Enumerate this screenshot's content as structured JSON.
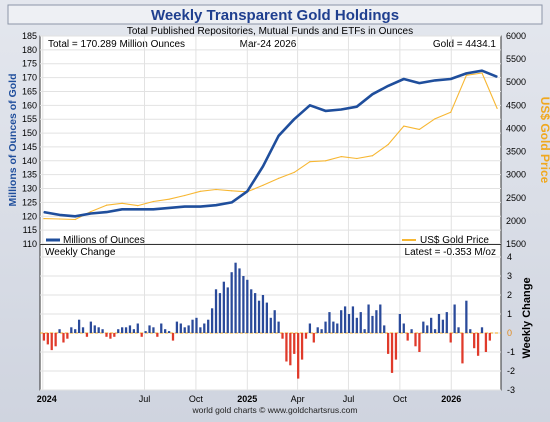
{
  "title": "Weekly Transparent Gold Holdings",
  "subtitle": "Total Published Repositories, Mutual Funds and ETFs in Ounces",
  "info": {
    "total": "Total = 170.289 Million Ounces",
    "date": "Mar-24  2026",
    "gold": "Gold = 4434.1",
    "latest": "Latest = -0.353 M/oz"
  },
  "footer": "world gold charts © www.goldchartsrus.com",
  "colors": {
    "holdings": "#1f4e9c",
    "gold_price": "#f7b733",
    "positive_bar": "#2a4a9a",
    "negative_bar": "#e03a2a",
    "title_text": "#1f3f8f",
    "background_top": "#d9dde6"
  },
  "chart_data": [
    {
      "type": "line",
      "title": "Weekly Transparent Gold Holdings",
      "subtitle": "Total Published Repositories, Mutual Funds and ETFs in Ounces",
      "ylabel": "Millions of Ounces of Gold",
      "y2label": "US$ Gold Price",
      "ylim": [
        110,
        185
      ],
      "y2lim": [
        1500,
        6000
      ],
      "yticks": [
        110,
        115,
        120,
        125,
        130,
        135,
        140,
        145,
        150,
        155,
        160,
        165,
        170,
        175,
        180,
        185
      ],
      "y2ticks": [
        1500,
        2000,
        2500,
        3000,
        3500,
        4000,
        4500,
        5000,
        5500,
        6000
      ],
      "grid": true,
      "legend": [
        "bottom-left",
        "bottom-right"
      ],
      "series": [
        {
          "name": "Millions of Ounces",
          "axis": "left",
          "x": [
            "2024-01-03",
            "2024-01-31",
            "2024-02-28",
            "2024-03-27",
            "2024-04-24",
            "2024-05-22",
            "2024-06-19",
            "2024-07-17",
            "2024-08-14",
            "2024-09-11",
            "2024-10-09",
            "2024-11-06",
            "2024-12-04",
            "2025-01-01",
            "2025-01-29",
            "2025-02-26",
            "2025-03-26",
            "2025-04-23",
            "2025-05-21",
            "2025-06-18",
            "2025-07-16",
            "2025-08-13",
            "2025-09-10",
            "2025-10-08",
            "2025-11-05",
            "2025-12-03",
            "2025-12-31",
            "2026-01-28",
            "2026-02-25",
            "2026-03-24"
          ],
          "values": [
            121.5,
            120.5,
            120.0,
            121.0,
            121.5,
            122.5,
            122.5,
            122.5,
            123.0,
            123.5,
            123.5,
            124.0,
            125.0,
            129.0,
            138.0,
            149.0,
            155.0,
            160.0,
            158.0,
            158.5,
            159.5,
            164.0,
            167.0,
            169.5,
            168.0,
            169.0,
            169.5,
            171.5,
            172.5,
            170.3
          ]
        },
        {
          "name": "US$ Gold Price",
          "axis": "right",
          "x": [
            "2024-01-03",
            "2024-01-31",
            "2024-02-28",
            "2024-03-27",
            "2024-04-24",
            "2024-05-22",
            "2024-06-19",
            "2024-07-17",
            "2024-08-14",
            "2024-09-11",
            "2024-10-09",
            "2024-11-06",
            "2024-12-04",
            "2025-01-01",
            "2025-01-29",
            "2025-02-26",
            "2025-03-26",
            "2025-04-23",
            "2025-05-21",
            "2025-06-18",
            "2025-07-16",
            "2025-08-13",
            "2025-09-10",
            "2025-10-08",
            "2025-11-05",
            "2025-12-03",
            "2025-12-31",
            "2026-01-28",
            "2026-02-25",
            "2026-03-24"
          ],
          "values": [
            2050,
            2040,
            2030,
            2200,
            2340,
            2380,
            2330,
            2420,
            2470,
            2550,
            2640,
            2680,
            2650,
            2630,
            2770,
            2920,
            3050,
            3280,
            3300,
            3390,
            3350,
            3410,
            3650,
            4050,
            3980,
            4210,
            4350,
            5150,
            5200,
            4434.1
          ]
        }
      ]
    },
    {
      "type": "bar",
      "title": "Weekly Change",
      "ylabel": "Weekly Change",
      "ylim": [
        -3,
        4
      ],
      "yticks": [
        -3,
        -2,
        -1,
        0,
        1,
        2,
        3,
        4
      ],
      "xlim": [
        "2023-12-27",
        "2026-03-31"
      ],
      "xtick_labels": [
        "2024",
        "Jul",
        "Oct",
        "2025",
        "Apr",
        "Jul",
        "Oct",
        "2026"
      ],
      "xtick_dates": [
        "2024-01-01",
        "2024-07-01",
        "2024-10-01",
        "2025-01-01",
        "2025-04-01",
        "2025-07-01",
        "2025-10-01",
        "2026-01-01"
      ],
      "values": [
        -0.4,
        -0.6,
        -0.9,
        -0.7,
        0.2,
        -0.5,
        -0.3,
        0.3,
        0.2,
        0.7,
        0.3,
        -0.2,
        0.6,
        0.4,
        0.3,
        0.2,
        -0.2,
        -0.3,
        -0.2,
        0.2,
        0.3,
        0.3,
        0.4,
        0.2,
        0.5,
        -0.2,
        0.1,
        0.4,
        0.3,
        -0.2,
        0.5,
        0.2,
        0.1,
        -0.4,
        0.6,
        0.5,
        0.3,
        0.4,
        0.7,
        0.8,
        0.3,
        0.5,
        0.7,
        1.3,
        2.3,
        2.1,
        2.7,
        2.4,
        3.2,
        3.7,
        3.4,
        3.0,
        2.8,
        2.3,
        2.1,
        1.7,
        2.0,
        1.6,
        0.8,
        1.2,
        0.6,
        -0.3,
        -1.5,
        -1.7,
        -1.1,
        -2.4,
        -1.4,
        -0.3,
        0.5,
        -0.5,
        0.3,
        0.2,
        0.6,
        1.1,
        0.6,
        0.5,
        1.2,
        1.4,
        1.0,
        1.4,
        0.8,
        1.1,
        0.2,
        1.5,
        0.9,
        1.2,
        1.5,
        0.4,
        -1.1,
        -2.1,
        -1.4,
        1.0,
        0.5,
        -0.4,
        0.2,
        -0.7,
        -1.0,
        0.6,
        0.4,
        0.8,
        0.2,
        1.0,
        0.7,
        1.1,
        -0.5,
        1.5,
        0.3,
        -1.6,
        1.7,
        0.2,
        -0.8,
        -1.2,
        0.3,
        -1.0,
        -0.4
      ],
      "latest": -0.353
    }
  ]
}
